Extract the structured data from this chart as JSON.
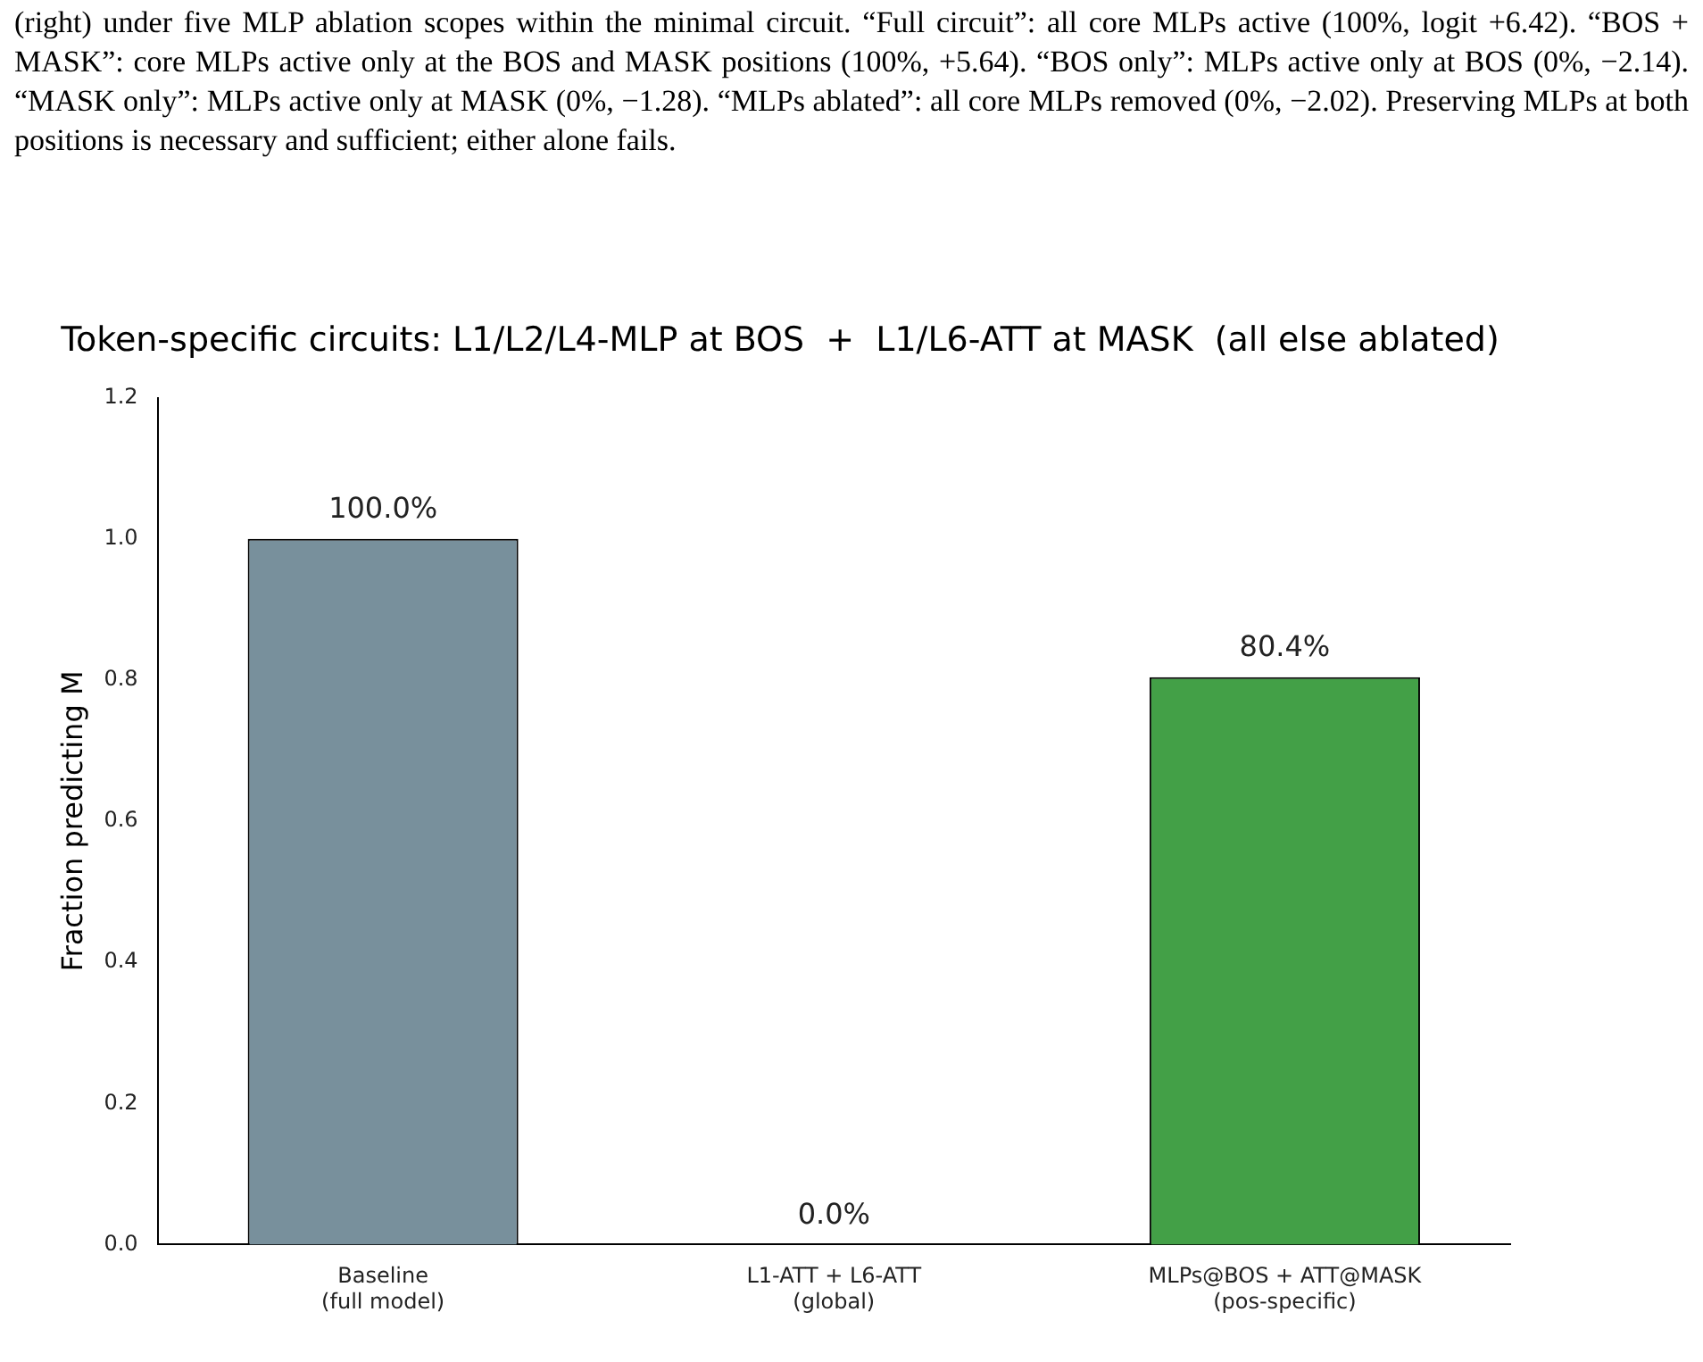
{
  "chart_data": {
    "type": "bar",
    "title": "Token-specific circuits: L1/L2/L4-MLP at BOS  +  L1/L6-ATT at MASK  (all else ablated)",
    "annotations": [
      "(right) under five MLP ablation scopes within the minimal circuit. “Full circuit”: all core MLPs active (100%, logit +6.42). “BOS + MASK”: core MLPs active only at the BOS and MASK positions (100%, +5.64). “BOS only”: MLPs active only at BOS (0%, −2.14). “MASK only”: MLPs active only at MASK (0%, −1.28). “MLPs ablated”: all core MLPs removed (0%, −2.02). Preserving MLPs at both positions is necessary and sufficient; either alone fails."
    ],
    "ylabel": "Fraction predicting M",
    "categories": [
      "Baseline\n(full model)",
      "L1-ATT + L6-ATT\n(global)",
      "MLPs@BOS + ATT@MASK\n(pos-specific)"
    ],
    "values": [
      1.0,
      0.0,
      0.804
    ],
    "colors": [
      "#78909c",
      "#e53935",
      "#43a047"
    ],
    "value_labels": [
      "100.0%",
      "0.0%",
      "80.4%"
    ],
    "ylim": [
      0,
      1.2
    ],
    "yticks": [
      {
        "value": 0,
        "label": "0.0"
      },
      0.2,
      0.4,
      0.6,
      0.8,
      {
        "value": 1,
        "label": "1.0"
      },
      1.2
    ],
    "grid": false,
    "legend": false
  }
}
